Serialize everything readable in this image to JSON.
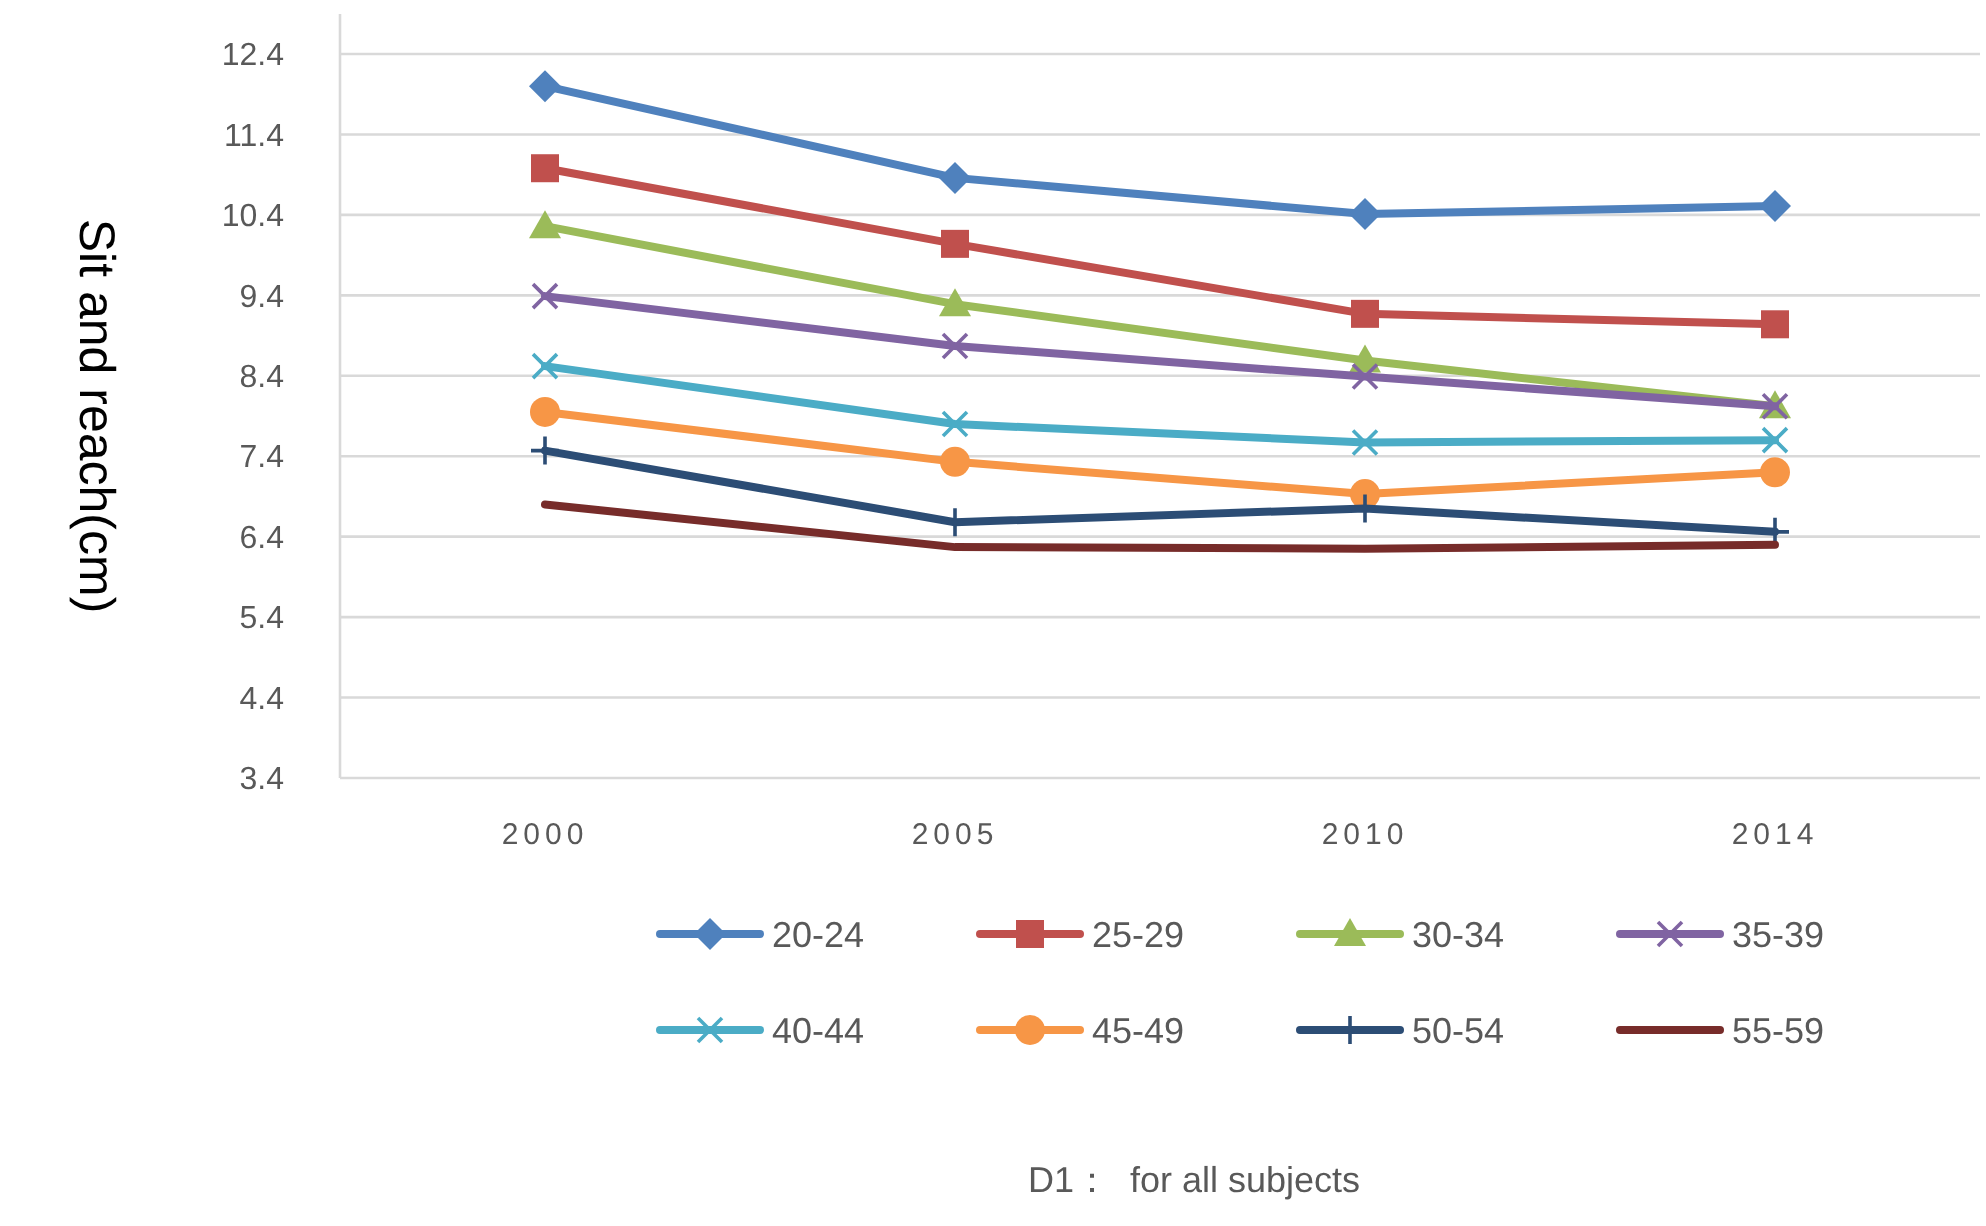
{
  "chart_data": {
    "type": "line",
    "ylabel": "Sit and reach(cm)",
    "categories": [
      "2000",
      "2005",
      "2010",
      "2014"
    ],
    "ylim": [
      3.4,
      12.4
    ],
    "yticks": [
      3.4,
      4.4,
      5.4,
      6.4,
      7.4,
      8.4,
      9.4,
      10.4,
      11.4,
      12.4
    ],
    "grid": "y",
    "legend": "bottom",
    "annotations": [
      "D1：  for all subjects"
    ],
    "series": [
      {
        "name": "20-24",
        "color": "#4f81bd",
        "marker": "diamond",
        "values": [
          12.0,
          10.86,
          10.41,
          10.51
        ]
      },
      {
        "name": "25-29",
        "color": "#c0504d",
        "marker": "square",
        "values": [
          10.98,
          10.04,
          9.17,
          9.04
        ]
      },
      {
        "name": "30-34",
        "color": "#9bbb59",
        "marker": "triangle",
        "values": [
          10.26,
          9.29,
          8.59,
          8.02
        ]
      },
      {
        "name": "35-39",
        "color": "#8064a2",
        "marker": "cross",
        "values": [
          9.39,
          8.77,
          8.39,
          8.02
        ]
      },
      {
        "name": "40-44",
        "color": "#4bacc6",
        "marker": "cross",
        "values": [
          8.52,
          7.8,
          7.57,
          7.6
        ]
      },
      {
        "name": "45-49",
        "color": "#f79646",
        "marker": "circle",
        "values": [
          7.95,
          7.33,
          6.93,
          7.2
        ]
      },
      {
        "name": "50-54",
        "color": "#2c4d75",
        "marker": "plus",
        "values": [
          7.47,
          6.58,
          6.75,
          6.46
        ]
      },
      {
        "name": "55-59",
        "color": "#772c2a",
        "marker": "none",
        "values": [
          6.8,
          6.27,
          6.25,
          6.3
        ]
      }
    ]
  }
}
